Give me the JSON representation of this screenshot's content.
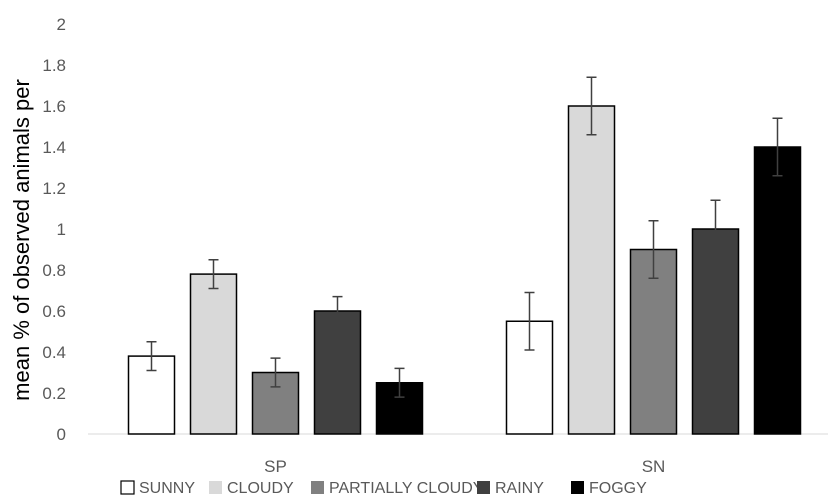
{
  "chart_data": {
    "type": "bar",
    "title": "",
    "xlabel": "",
    "ylabel": "mean % of observed animals per",
    "ylim": [
      0,
      2
    ],
    "yticks": [
      "0",
      "0.2",
      "0.4",
      "0.6",
      "0.8",
      "1",
      "1.2",
      "1.4",
      "1.6",
      "1.8",
      "2"
    ],
    "categories": [
      "SP",
      "SN"
    ],
    "grid": false,
    "legend_position": "bottom",
    "series": [
      {
        "name": "SUNNY",
        "color": "#ffffff",
        "values": [
          0.38,
          0.55
        ],
        "errors": [
          0.07,
          0.14
        ]
      },
      {
        "name": "CLOUDY",
        "color": "#d9d9d9",
        "values": [
          0.78,
          1.6
        ],
        "errors": [
          0.07,
          0.14
        ]
      },
      {
        "name": "PARTIALLY CLOUDY",
        "color": "#808080",
        "values": [
          0.3,
          0.9
        ],
        "errors": [
          0.07,
          0.14
        ]
      },
      {
        "name": "RAINY",
        "color": "#404040",
        "values": [
          0.6,
          1.0
        ],
        "errors": [
          0.07,
          0.14
        ]
      },
      {
        "name": "FOGGY",
        "color": "#000000",
        "values": [
          0.25,
          1.4
        ],
        "errors": [
          0.07,
          0.14
        ]
      }
    ]
  }
}
